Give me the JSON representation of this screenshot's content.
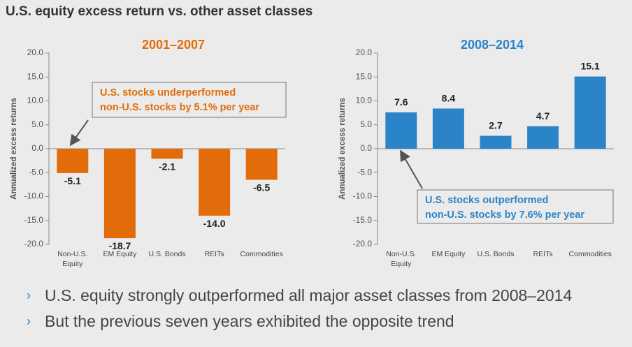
{
  "page": {
    "title": "U.S. equity excess return vs. other asset classes"
  },
  "chart_data": [
    {
      "type": "bar",
      "title": "2001–2007",
      "ylabel": "Annualized excess returns",
      "categories": [
        "Non-U.S. Equity",
        "EM Equity",
        "U.S. Bonds",
        "REITs",
        "Commodities"
      ],
      "values": [
        -5.1,
        -18.7,
        -2.1,
        -14.0,
        -6.5
      ],
      "value_labels": [
        "-5.1",
        "-18.7",
        "-2.1",
        "-14.0",
        "-6.5"
      ],
      "ylim": [
        -20,
        20
      ],
      "yticks": [
        "20.0",
        "15.0",
        "10.0",
        "5.0",
        "0.0",
        "-5.0",
        "-10.0",
        "-15.0",
        "-20.0"
      ],
      "color": "#e36c0a",
      "annotation": [
        "U.S. stocks underperformed",
        "non-U.S. stocks by 5.1% per year"
      ],
      "grid": false
    },
    {
      "type": "bar",
      "title": "2008–2014",
      "ylabel": "Annualized excess returns",
      "categories": [
        "Non-U.S. Equity",
        "EM Equity",
        "U.S. Bonds",
        "REITs",
        "Commodities"
      ],
      "values": [
        7.6,
        8.4,
        2.7,
        4.7,
        15.1
      ],
      "value_labels": [
        "7.6",
        "8.4",
        "2.7",
        "4.7",
        "15.1"
      ],
      "ylim": [
        -20,
        20
      ],
      "yticks": [
        "20.0",
        "15.0",
        "10.0",
        "5.0",
        "0.0",
        "-5.0",
        "-10.0",
        "-15.0",
        "-20.0"
      ],
      "color": "#2b84c8",
      "annotation": [
        "U.S. stocks outperformed",
        "non-U.S. stocks by 7.6% per year"
      ],
      "grid": false
    }
  ],
  "bullets": [
    "U.S. equity strongly outperformed all major asset classes from 2008–2014",
    "But the previous seven years exhibited the opposite trend"
  ],
  "bullet_marker": "›"
}
